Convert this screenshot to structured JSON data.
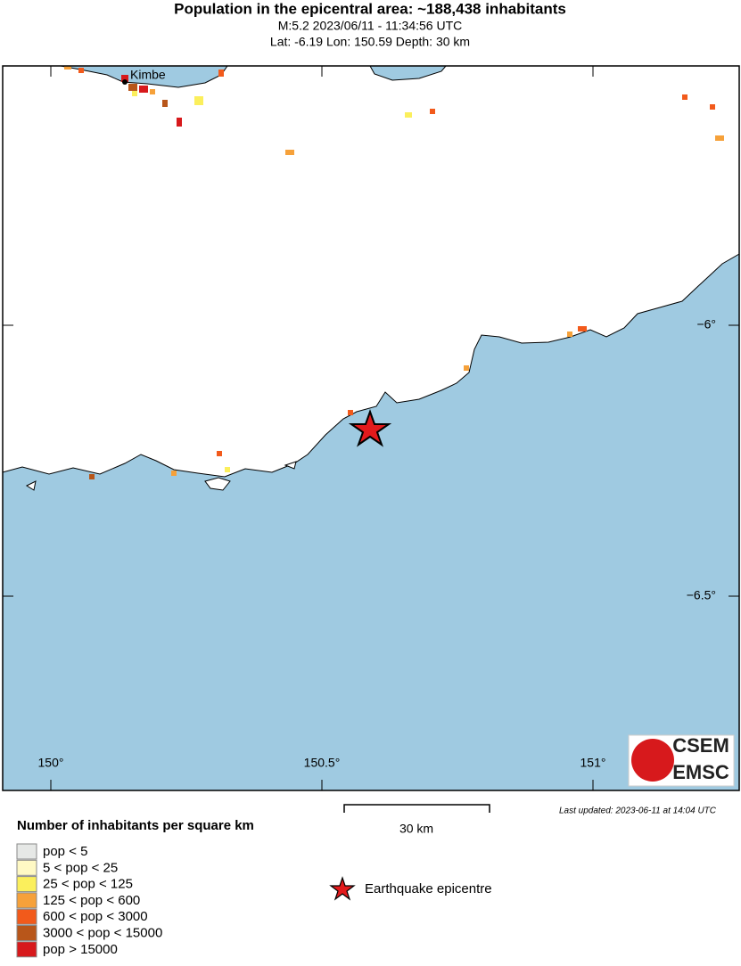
{
  "header": {
    "title": "Population in the epicentral area: ~188,438 inhabitants",
    "line1": "M:5.2 2023/06/11 - 11:34:56 UTC",
    "line2": "Lat: -6.19 Lon: 150.59 Depth: 30 km"
  },
  "map": {
    "place": "Kimbe",
    "lon_labels": [
      "150°",
      "150.5°",
      "151°"
    ],
    "lat_labels": [
      "−6°",
      "−6.5°"
    ],
    "land_color": "#ffffff",
    "sea_color": "#9fcae1"
  },
  "logo": {
    "top": "CSEM",
    "bottom": "EMSC"
  },
  "scale": {
    "label": "30 km"
  },
  "updated": "Last updated: 2023-06-11 at 14:04 UTC",
  "legend": {
    "title": "Number of inhabitants per square km",
    "entries": [
      {
        "label": "pop < 5",
        "color": "#e6e8e6"
      },
      {
        "label": "5 < pop < 25",
        "color": "#fff9c4"
      },
      {
        "label": "25 < pop < 125",
        "color": "#fbef5c"
      },
      {
        "label": "125 < pop < 600",
        "color": "#f6a13a"
      },
      {
        "label": "600 < pop < 3000",
        "color": "#f25a1b"
      },
      {
        "label": "3000 < pop < 15000",
        "color": "#b8561a"
      },
      {
        "label": "pop > 15000",
        "color": "#d7191c"
      }
    ],
    "epicentre": "Earthquake epicentre"
  }
}
